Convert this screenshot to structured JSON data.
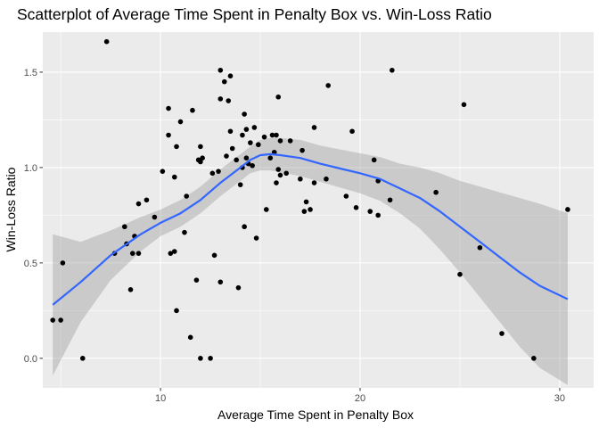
{
  "chart_data": {
    "type": "scatter",
    "title": "Scatterplot of Average Time Spent in Penalty Box vs. Win-Loss Ratio",
    "xlabel": "Average Time Spent in Penalty Box",
    "ylabel": "Win-Loss Ratio",
    "xlim": [
      4.1,
      31.7
    ],
    "ylim": [
      -0.155,
      1.71
    ],
    "x_ticks": [
      10,
      20,
      30
    ],
    "x_tick_labels": [
      "10",
      "20",
      "30"
    ],
    "y_ticks": [
      0.0,
      0.5,
      1.0,
      1.5
    ],
    "y_tick_labels": [
      "0.0",
      "0.5",
      "1.0",
      "1.5"
    ],
    "grid": true,
    "legend": "none",
    "colors": {
      "panel": "#ebebeb",
      "grid": "#ffffff",
      "points": "#000000",
      "smooth_line": "#3366ff",
      "confidence_band": "#999999"
    },
    "points": [
      {
        "x": 7.3,
        "y": 1.66
      },
      {
        "x": 4.6,
        "y": 0.2
      },
      {
        "x": 5.0,
        "y": 0.2
      },
      {
        "x": 5.1,
        "y": 0.5
      },
      {
        "x": 6.1,
        "y": 0.0
      },
      {
        "x": 7.7,
        "y": 0.55
      },
      {
        "x": 8.2,
        "y": 0.69
      },
      {
        "x": 8.3,
        "y": 0.6
      },
      {
        "x": 8.5,
        "y": 0.36
      },
      {
        "x": 8.6,
        "y": 0.55
      },
      {
        "x": 8.7,
        "y": 0.64
      },
      {
        "x": 8.9,
        "y": 0.55
      },
      {
        "x": 8.9,
        "y": 0.81
      },
      {
        "x": 9.3,
        "y": 0.83
      },
      {
        "x": 9.7,
        "y": 0.74
      },
      {
        "x": 10.1,
        "y": 0.98
      },
      {
        "x": 10.4,
        "y": 1.31
      },
      {
        "x": 10.4,
        "y": 1.17
      },
      {
        "x": 10.5,
        "y": 0.55
      },
      {
        "x": 10.7,
        "y": 0.95
      },
      {
        "x": 10.7,
        "y": 0.56
      },
      {
        "x": 10.8,
        "y": 0.25
      },
      {
        "x": 10.8,
        "y": 1.11
      },
      {
        "x": 11.0,
        "y": 1.24
      },
      {
        "x": 11.2,
        "y": 0.66
      },
      {
        "x": 11.3,
        "y": 0.85
      },
      {
        "x": 11.5,
        "y": 0.11
      },
      {
        "x": 11.6,
        "y": 1.3
      },
      {
        "x": 11.8,
        "y": 0.41
      },
      {
        "x": 11.9,
        "y": 1.04
      },
      {
        "x": 12.0,
        "y": 1.03
      },
      {
        "x": 12.0,
        "y": 1.11
      },
      {
        "x": 12.0,
        "y": 0.0
      },
      {
        "x": 12.1,
        "y": 1.05
      },
      {
        "x": 12.5,
        "y": 0.0
      },
      {
        "x": 12.6,
        "y": 0.97
      },
      {
        "x": 12.7,
        "y": 0.54
      },
      {
        "x": 12.9,
        "y": 0.98
      },
      {
        "x": 13.0,
        "y": 1.51
      },
      {
        "x": 13.0,
        "y": 1.36
      },
      {
        "x": 13.0,
        "y": 0.4
      },
      {
        "x": 13.2,
        "y": 1.45
      },
      {
        "x": 13.3,
        "y": 1.06
      },
      {
        "x": 13.4,
        "y": 1.35
      },
      {
        "x": 13.5,
        "y": 1.19
      },
      {
        "x": 13.5,
        "y": 1.48
      },
      {
        "x": 13.6,
        "y": 1.1
      },
      {
        "x": 13.8,
        "y": 1.04
      },
      {
        "x": 13.9,
        "y": 0.37
      },
      {
        "x": 14.0,
        "y": 0.91
      },
      {
        "x": 14.1,
        "y": 1.0
      },
      {
        "x": 14.1,
        "y": 1.17
      },
      {
        "x": 14.2,
        "y": 0.69
      },
      {
        "x": 14.2,
        "y": 1.28
      },
      {
        "x": 14.3,
        "y": 1.2
      },
      {
        "x": 14.3,
        "y": 1.05
      },
      {
        "x": 14.4,
        "y": 1.02
      },
      {
        "x": 14.5,
        "y": 1.13
      },
      {
        "x": 14.6,
        "y": 1.01
      },
      {
        "x": 14.7,
        "y": 1.21
      },
      {
        "x": 14.8,
        "y": 0.63
      },
      {
        "x": 14.9,
        "y": 1.12
      },
      {
        "x": 15.2,
        "y": 1.16
      },
      {
        "x": 15.3,
        "y": 0.78
      },
      {
        "x": 15.5,
        "y": 1.05
      },
      {
        "x": 15.6,
        "y": 1.17
      },
      {
        "x": 15.7,
        "y": 1.08
      },
      {
        "x": 15.8,
        "y": 0.92
      },
      {
        "x": 15.8,
        "y": 1.17
      },
      {
        "x": 15.9,
        "y": 0.99
      },
      {
        "x": 15.9,
        "y": 1.37
      },
      {
        "x": 16.0,
        "y": 0.96
      },
      {
        "x": 16.0,
        "y": 1.14
      },
      {
        "x": 16.3,
        "y": 0.97
      },
      {
        "x": 16.5,
        "y": 1.14
      },
      {
        "x": 17.0,
        "y": 0.94
      },
      {
        "x": 17.1,
        "y": 1.09
      },
      {
        "x": 17.2,
        "y": 0.77
      },
      {
        "x": 17.3,
        "y": 0.82
      },
      {
        "x": 17.5,
        "y": 0.78
      },
      {
        "x": 17.7,
        "y": 1.21
      },
      {
        "x": 17.7,
        "y": 0.92
      },
      {
        "x": 18.3,
        "y": 0.94
      },
      {
        "x": 18.4,
        "y": 1.43
      },
      {
        "x": 19.3,
        "y": 0.85
      },
      {
        "x": 19.6,
        "y": 1.19
      },
      {
        "x": 19.8,
        "y": 0.79
      },
      {
        "x": 20.5,
        "y": 0.77
      },
      {
        "x": 20.7,
        "y": 1.04
      },
      {
        "x": 20.9,
        "y": 0.93
      },
      {
        "x": 20.9,
        "y": 0.75
      },
      {
        "x": 21.5,
        "y": 0.83
      },
      {
        "x": 21.6,
        "y": 1.51
      },
      {
        "x": 23.8,
        "y": 0.87
      },
      {
        "x": 25.0,
        "y": 0.44
      },
      {
        "x": 25.2,
        "y": 1.33
      },
      {
        "x": 26.0,
        "y": 0.58
      },
      {
        "x": 27.1,
        "y": 0.13
      },
      {
        "x": 28.7,
        "y": 0.0
      },
      {
        "x": 30.4,
        "y": 0.78
      }
    ],
    "smooth": {
      "x": [
        4.6,
        6,
        7.5,
        9,
        10,
        11,
        12,
        13,
        14,
        14.5,
        15,
        15.5,
        16,
        17,
        18,
        19,
        20,
        21,
        22,
        23,
        24,
        25,
        26,
        27,
        28,
        29,
        30.4
      ],
      "y": [
        0.28,
        0.4,
        0.54,
        0.65,
        0.71,
        0.76,
        0.83,
        0.92,
        1.0,
        1.04,
        1.065,
        1.07,
        1.065,
        1.05,
        1.02,
        0.995,
        0.97,
        0.94,
        0.89,
        0.84,
        0.77,
        0.69,
        0.61,
        0.53,
        0.45,
        0.38,
        0.31
      ],
      "lower": [
        -0.09,
        0.19,
        0.41,
        0.56,
        0.64,
        0.69,
        0.76,
        0.85,
        0.93,
        0.97,
        0.985,
        0.985,
        0.975,
        0.955,
        0.925,
        0.895,
        0.865,
        0.825,
        0.76,
        0.68,
        0.57,
        0.45,
        0.32,
        0.19,
        0.06,
        -0.05,
        -0.14
      ],
      "upper": [
        0.65,
        0.61,
        0.67,
        0.74,
        0.78,
        0.83,
        0.9,
        0.99,
        1.07,
        1.11,
        1.145,
        1.155,
        1.155,
        1.145,
        1.115,
        1.095,
        1.075,
        1.055,
        1.02,
        1.0,
        0.97,
        0.93,
        0.9,
        0.87,
        0.84,
        0.81,
        0.76
      ]
    }
  }
}
